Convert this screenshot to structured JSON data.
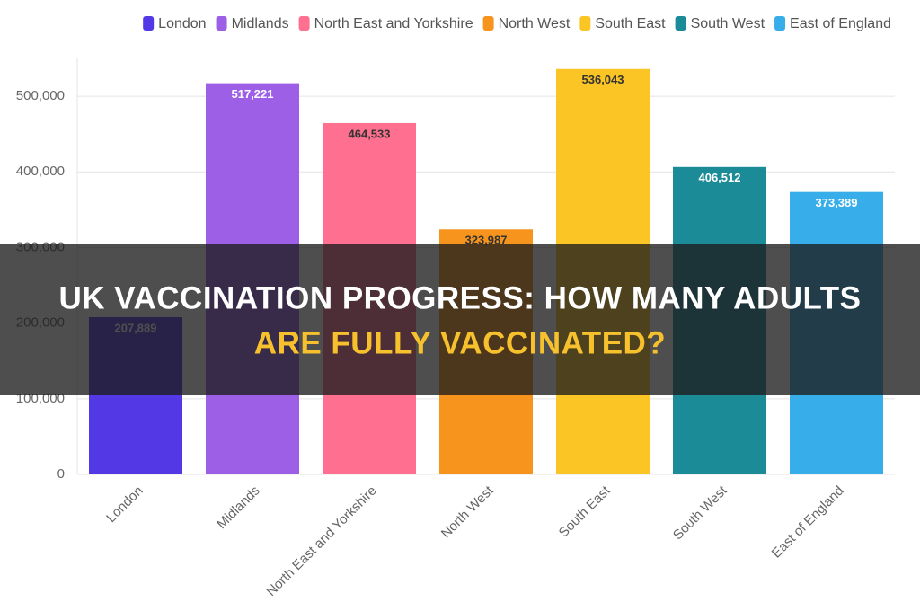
{
  "chart_data": {
    "type": "bar",
    "categories": [
      "London",
      "Midlands",
      "North East and Yorkshire",
      "North West",
      "South East",
      "South West",
      "East of England"
    ],
    "values": [
      207889,
      517221,
      464533,
      323987,
      536043,
      406512,
      373389
    ],
    "value_labels": [
      "207,889",
      "517,221",
      "464,533",
      "323,987",
      "536,043",
      "406,512",
      "373,389"
    ],
    "colors": [
      "#5339e6",
      "#9d5fe6",
      "#ff7090",
      "#f7941d",
      "#fcc526",
      "#1b8b98",
      "#37adea"
    ],
    "ylim": [
      0,
      550000
    ],
    "yticks": [
      0,
      {
        "value": 100000,
        "label": "100,000"
      },
      {
        "value": 200000,
        "label": "200,000"
      },
      {
        "value": 300000,
        "label": "300,000"
      },
      {
        "value": 400000,
        "label": "400,000"
      },
      {
        "value": 500000,
        "label": "500,000"
      }
    ],
    "grid": true,
    "legend": "top-right"
  },
  "banner": {
    "line1": "UK VACCINATION PROGRESS: HOW MANY ADULTS",
    "line2": "ARE FULLY VACCINATED?"
  }
}
